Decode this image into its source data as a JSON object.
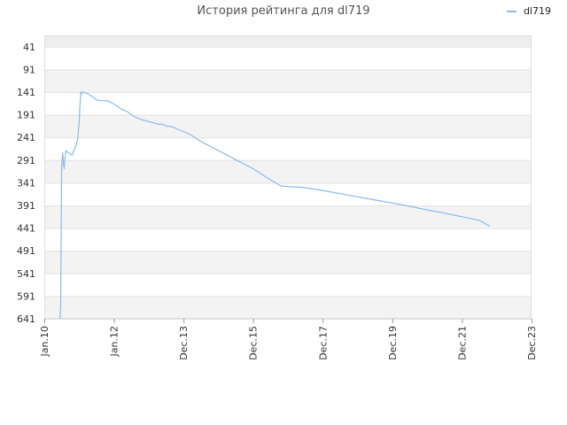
{
  "chart_data": {
    "type": "line",
    "title": "История рейтинга для dl719",
    "legend_position": "top-right",
    "y_inverted": true,
    "grid": true,
    "ylim": [
      16,
      641
    ],
    "y_ticks": [
      41,
      91,
      141,
      191,
      241,
      291,
      341,
      391,
      441,
      491,
      541,
      591,
      641
    ],
    "x_tick_labels": [
      "Jan.10",
      "Jan.12",
      "Dec.13",
      "Dec.15",
      "Dec.17",
      "Dec.19",
      "Dec.21",
      "Dec.23"
    ],
    "xlim": [
      2010.0,
      2024.0
    ],
    "series": [
      {
        "name": "dl719",
        "color": "#88bbee",
        "x": [
          2010.45,
          2010.47,
          2010.5,
          2010.52,
          2010.53,
          2010.55,
          2010.57,
          2010.6,
          2010.62,
          2010.63,
          2010.66,
          2010.7,
          2010.8,
          2010.95,
          2011.0,
          2011.02,
          2011.05,
          2011.06,
          2011.08,
          2011.1,
          2011.12,
          2011.2,
          2011.3,
          2011.4,
          2011.5,
          2011.6,
          2011.8,
          2011.95,
          2012.05,
          2012.2,
          2012.4,
          2012.6,
          2012.75,
          2012.8,
          2013.0,
          2013.3,
          2013.4,
          2013.5,
          2013.7,
          2013.75,
          2013.8,
          2014.0,
          2014.2,
          2014.3,
          2014.5,
          2015.0,
          2015.5,
          2016.0,
          2016.4,
          2016.8,
          2017.1,
          2017.4,
          2017.5,
          2018.0,
          2018.5,
          2019.0,
          2019.5,
          2020.0,
          2020.5,
          2021.0,
          2021.5,
          2022.0,
          2022.5,
          2022.8
        ],
        "y": [
          641,
          610,
          300,
          285,
          275,
          300,
          310,
          280,
          270,
          272,
          273,
          275,
          280,
          250,
          210,
          175,
          145,
          140,
          145,
          142,
          141,
          143,
          147,
          152,
          158,
          160,
          160,
          165,
          170,
          178,
          185,
          196,
          200,
          202,
          206,
          212,
          212,
          216,
          218,
          220,
          222,
          228,
          235,
          240,
          250,
          270,
          290,
          310,
          330,
          348,
          350,
          351,
          352,
          358,
          365,
          372,
          379,
          386,
          393,
          401,
          408,
          416,
          424,
          437
        ]
      }
    ]
  }
}
